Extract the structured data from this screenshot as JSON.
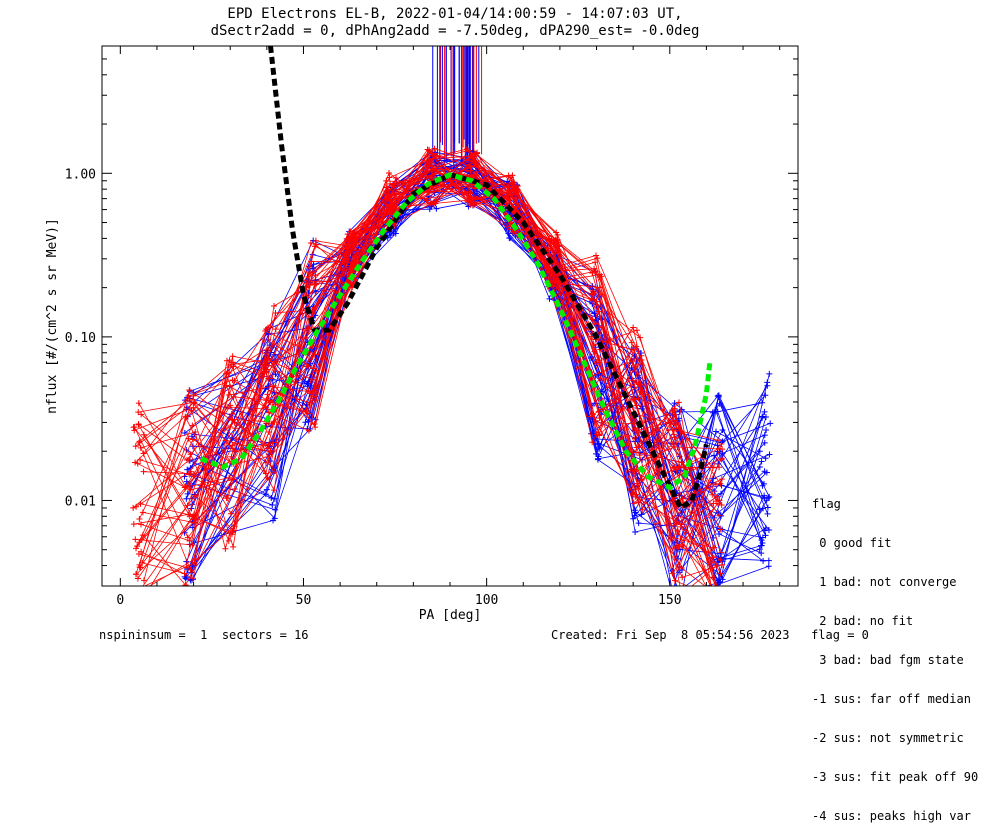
{
  "chart_data": {
    "type": "line",
    "title_line1": "EPD Electrons EL-B, 2022-01-04/14:00:59 - 14:07:03 UT,",
    "title_line2": "dSectr2add = 0, dPhAng2add = -7.50deg, dPA290_est=  -0.0deg",
    "xlabel": "PA [deg]",
    "ylabel": "nflux [#/(cm^2 s sr MeV)]",
    "xlim": [
      -5,
      185
    ],
    "ylim": [
      0.003,
      6.0
    ],
    "yscale": "log",
    "x_ticks": [
      0,
      50,
      100,
      150
    ],
    "y_ticks": [
      0.01,
      0.1,
      1.0
    ],
    "y_tick_labels": [
      "0.01",
      "0.10",
      "1.00"
    ],
    "x_tick_labels": [
      "0",
      "50",
      "100",
      "150"
    ],
    "series": [
      {
        "color": "#0000ff",
        "x": [
          19,
          41,
          52,
          63,
          74,
          85,
          96,
          107,
          118,
          130,
          141,
          152,
          163,
          176
        ],
        "y": [
          0.012,
          0.03,
          0.1,
          0.3,
          0.6,
          0.9,
          0.92,
          0.6,
          0.25,
          0.07,
          0.025,
          0.01,
          0.012,
          0.015
        ]
      },
      {
        "color": "#ff0000",
        "x": [
          5,
          19,
          30,
          41,
          52,
          63,
          74,
          85,
          96,
          107,
          118,
          130,
          141,
          152,
          163
        ],
        "y": [
          0.01,
          0.012,
          0.02,
          0.04,
          0.1,
          0.3,
          0.7,
          0.95,
          0.95,
          0.65,
          0.3,
          0.09,
          0.03,
          0.01,
          0.006
        ]
      }
    ],
    "fit_green": {
      "color": "#00ee00",
      "x": [
        22,
        28,
        33,
        38,
        43,
        48,
        54,
        60,
        66,
        72,
        78,
        84,
        90,
        96,
        102,
        108,
        114,
        120,
        126,
        132,
        138,
        144,
        150,
        154,
        157,
        160,
        161
      ],
      "y": [
        0.018,
        0.016,
        0.018,
        0.026,
        0.04,
        0.065,
        0.11,
        0.18,
        0.29,
        0.45,
        0.66,
        0.86,
        0.98,
        0.9,
        0.7,
        0.46,
        0.28,
        0.15,
        0.075,
        0.037,
        0.02,
        0.014,
        0.012,
        0.014,
        0.022,
        0.045,
        0.072
      ]
    },
    "fit_black": {
      "color": "#000000",
      "x": [
        41,
        44,
        47,
        50,
        53,
        57,
        62,
        70,
        80,
        90,
        100,
        110,
        120,
        130,
        140,
        148,
        153,
        156,
        158,
        160
      ],
      "y": [
        6.0,
        1.5,
        0.45,
        0.18,
        0.11,
        0.11,
        0.16,
        0.35,
        0.75,
        0.98,
        0.85,
        0.5,
        0.24,
        0.1,
        0.035,
        0.015,
        0.009,
        0.01,
        0.014,
        0.022
      ]
    },
    "spike_x_range": [
      85,
      99
    ],
    "spike_y_from": 1.15
  },
  "legend": {
    "title": "flag",
    "items": [
      " 0 good fit",
      " 1 bad: not converge",
      " 2 bad: no fit",
      " 3 bad: bad fgm state",
      "-1 sus: far off median",
      "-2 sus: not symmetric",
      "-3 sus: fit peak off 90",
      "-4 sus: peaks high var"
    ]
  },
  "footer": {
    "left": "nspininsum =  1  sectors = 16",
    "right": "Created: Fri Sep  8 05:54:56 2023   flag = 0"
  }
}
